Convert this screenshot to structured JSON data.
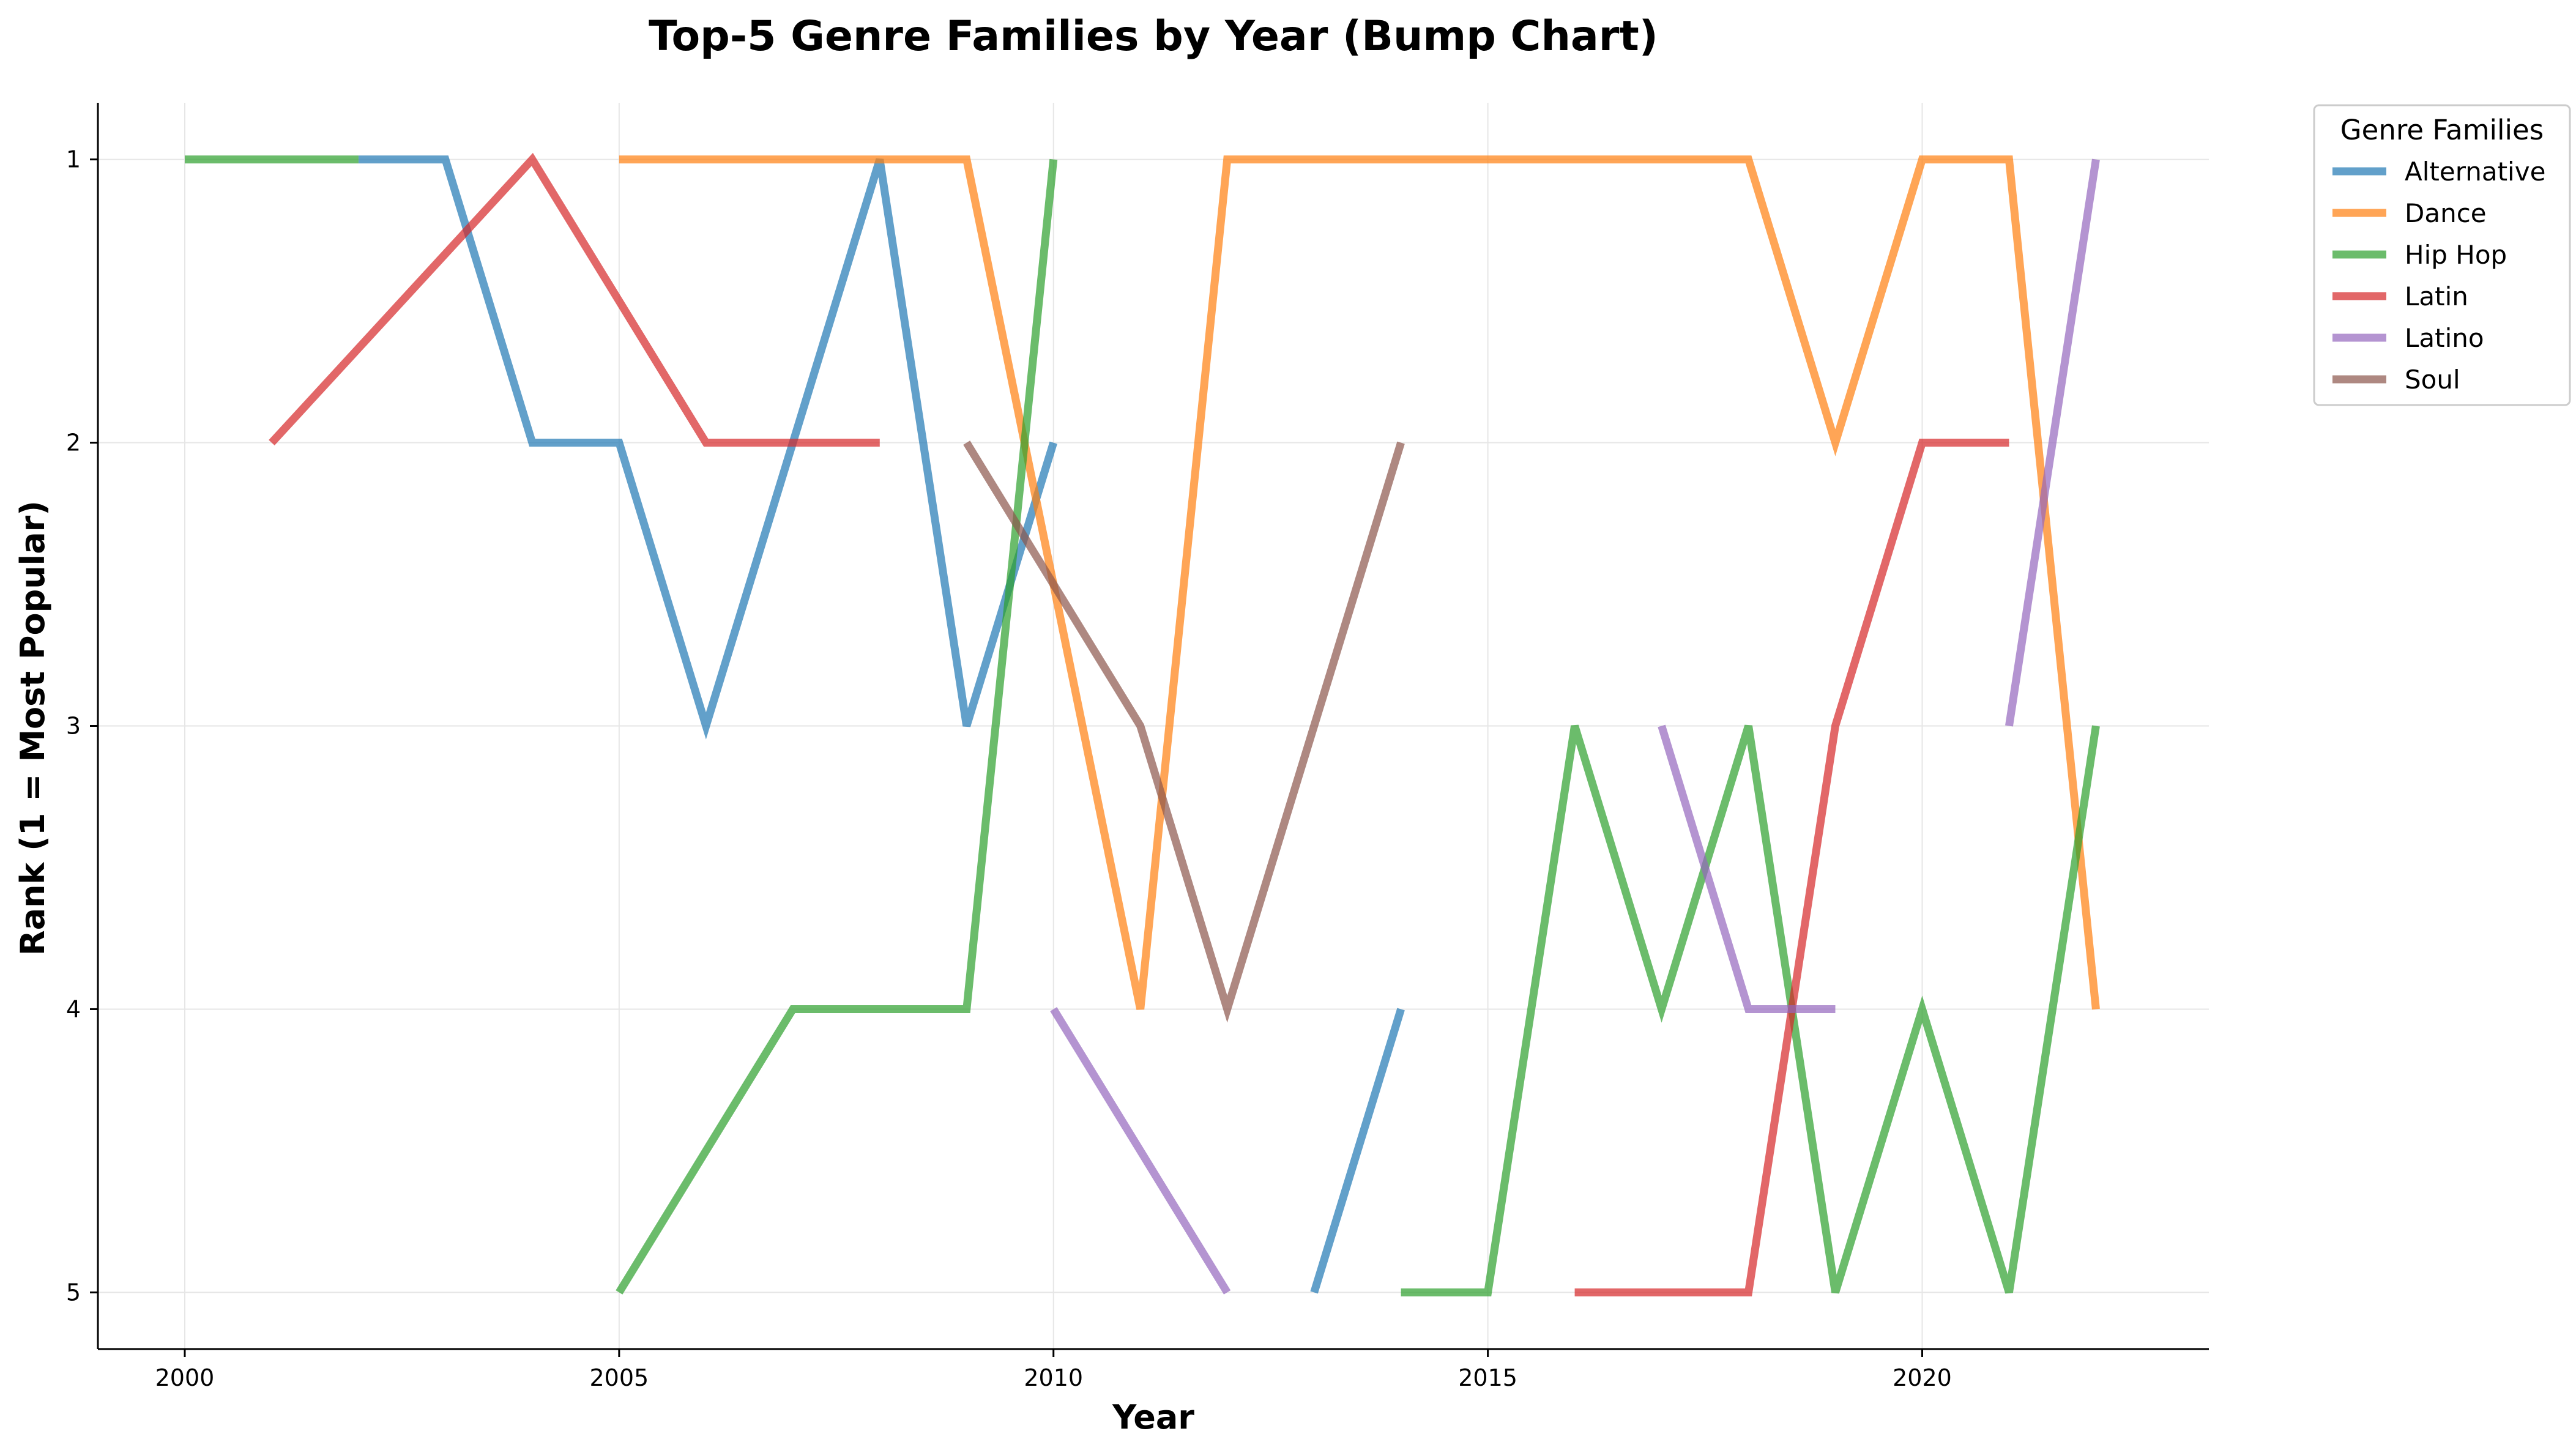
{
  "chart_data": {
    "type": "line",
    "title": "Top-5 Genre Families by Year (Bump Chart)",
    "xlabel": "Year",
    "ylabel": "Rank (1 = Most Popular)",
    "xlim": [
      1999,
      2023.3
    ],
    "ylim": [
      5.2,
      0.8
    ],
    "y_inverted": true,
    "xticks": [
      2000,
      2005,
      2010,
      2015,
      2020
    ],
    "yticks": [
      1,
      2,
      3,
      4,
      5
    ],
    "grid": true,
    "legend": {
      "title": "Genre Families",
      "placement": "outside-top-right"
    },
    "series": [
      {
        "name": "Alternative",
        "color": "#1f77b4",
        "segments": [
          [
            [
              2002,
              1
            ],
            [
              2003,
              1
            ],
            [
              2004,
              2
            ],
            [
              2005,
              2
            ],
            [
              2006,
              3
            ],
            [
              2007,
              2
            ],
            [
              2008,
              1
            ],
            [
              2009,
              3
            ],
            [
              2010,
              2
            ]
          ],
          [
            [
              2013,
              5
            ],
            [
              2014,
              4
            ]
          ]
        ]
      },
      {
        "name": "Dance",
        "color": "#ff7f0e",
        "segments": [
          [
            [
              2005,
              1
            ],
            [
              2006,
              1
            ],
            [
              2007,
              1
            ],
            [
              2008,
              1
            ],
            [
              2009,
              1
            ],
            [
              2010,
              2.5
            ],
            [
              2011,
              4
            ],
            [
              2012,
              1
            ],
            [
              2013,
              1
            ],
            [
              2014,
              1
            ],
            [
              2015,
              1
            ],
            [
              2016,
              1
            ],
            [
              2017,
              1
            ],
            [
              2018,
              1
            ],
            [
              2019,
              2
            ],
            [
              2020,
              1
            ],
            [
              2021,
              1
            ],
            [
              2022,
              4
            ]
          ]
        ]
      },
      {
        "name": "Hip Hop",
        "color": "#2ca02c",
        "segments": [
          [
            [
              2000,
              1
            ],
            [
              2002,
              1
            ]
          ],
          [
            [
              2005,
              5
            ],
            [
              2006,
              4.5
            ],
            [
              2007,
              4
            ],
            [
              2008,
              4
            ],
            [
              2009,
              4
            ],
            [
              2010,
              1
            ]
          ],
          [
            [
              2014,
              5
            ],
            [
              2015,
              5
            ],
            [
              2016,
              3
            ],
            [
              2017,
              4
            ],
            [
              2018,
              3
            ],
            [
              2019,
              5
            ],
            [
              2020,
              4
            ],
            [
              2021,
              5
            ],
            [
              2022,
              3
            ]
          ]
        ]
      },
      {
        "name": "Latin",
        "color": "#d62728",
        "segments": [
          [
            [
              2001,
              2
            ],
            [
              2004,
              1
            ],
            [
              2006,
              2
            ],
            [
              2007,
              2
            ],
            [
              2008,
              2
            ]
          ],
          [
            [
              2016,
              5
            ],
            [
              2017,
              5
            ],
            [
              2018,
              5
            ],
            [
              2019,
              3
            ],
            [
              2020,
              2
            ],
            [
              2021,
              2
            ]
          ]
        ]
      },
      {
        "name": "Latino",
        "color": "#9467bd",
        "segments": [
          [
            [
              2010,
              4
            ],
            [
              2012,
              5
            ]
          ],
          [
            [
              2017,
              3
            ],
            [
              2018,
              4
            ],
            [
              2019,
              4
            ]
          ],
          [
            [
              2021,
              3
            ],
            [
              2022,
              1
            ]
          ]
        ]
      },
      {
        "name": "Soul",
        "color": "#8c564b",
        "segments": [
          [
            [
              2009,
              2
            ],
            [
              2011,
              3
            ],
            [
              2012,
              4
            ],
            [
              2014,
              2
            ]
          ]
        ]
      }
    ]
  }
}
